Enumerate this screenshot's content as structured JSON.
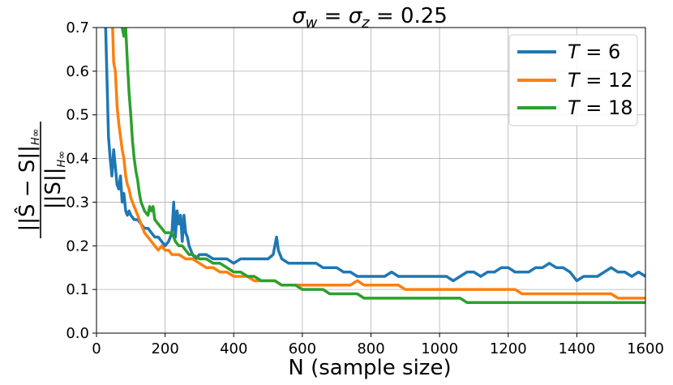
{
  "chart_data": {
    "type": "line",
    "title": "σw = σz = 0.25",
    "title_parts": {
      "sym1": "σ",
      "sub1": "w",
      "eq1": " = ",
      "sym2": "σ",
      "sub2": "z",
      "rest": " = 0.25"
    },
    "xlabel": "N (sample size)",
    "ylabel": "||Ŝ − S||H∞ / ||S||H∞",
    "ylabel_parts": {
      "num": "||Ŝ − S||",
      "den": "||S||",
      "sub": "H∞"
    },
    "xlim": [
      0,
      1600
    ],
    "ylim": [
      0,
      0.7
    ],
    "x_ticks": [
      "0",
      "200",
      "400",
      "600",
      "800",
      "1000",
      "1200",
      "1400",
      "1600"
    ],
    "y_ticks": [
      "0.0",
      "0.1",
      "0.2",
      "0.3",
      "0.4",
      "0.5",
      "0.6",
      "0.7"
    ],
    "grid": true,
    "legend_position": "top-right",
    "series": [
      {
        "name": "T = 6",
        "legend_var": "T",
        "legend_value": " = 6",
        "color": "#1f77b4",
        "points": [
          [
            25,
            0.75
          ],
          [
            30,
            0.6
          ],
          [
            35,
            0.45
          ],
          [
            40,
            0.4
          ],
          [
            45,
            0.36
          ],
          [
            50,
            0.42
          ],
          [
            55,
            0.38
          ],
          [
            60,
            0.34
          ],
          [
            65,
            0.33
          ],
          [
            70,
            0.36
          ],
          [
            75,
            0.3
          ],
          [
            80,
            0.32
          ],
          [
            85,
            0.28
          ],
          [
            90,
            0.27
          ],
          [
            95,
            0.28
          ],
          [
            100,
            0.27
          ],
          [
            110,
            0.26
          ],
          [
            120,
            0.26
          ],
          [
            130,
            0.25
          ],
          [
            140,
            0.24
          ],
          [
            150,
            0.24
          ],
          [
            160,
            0.23
          ],
          [
            170,
            0.22
          ],
          [
            180,
            0.22
          ],
          [
            190,
            0.21
          ],
          [
            200,
            0.2
          ],
          [
            210,
            0.21
          ],
          [
            220,
            0.23
          ],
          [
            225,
            0.3
          ],
          [
            230,
            0.22
          ],
          [
            235,
            0.28
          ],
          [
            240,
            0.25
          ],
          [
            245,
            0.27
          ],
          [
            250,
            0.21
          ],
          [
            255,
            0.27
          ],
          [
            260,
            0.23
          ],
          [
            265,
            0.22
          ],
          [
            270,
            0.2
          ],
          [
            280,
            0.18
          ],
          [
            290,
            0.17
          ],
          [
            300,
            0.18
          ],
          [
            320,
            0.18
          ],
          [
            340,
            0.17
          ],
          [
            360,
            0.17
          ],
          [
            380,
            0.17
          ],
          [
            400,
            0.16
          ],
          [
            420,
            0.17
          ],
          [
            440,
            0.17
          ],
          [
            460,
            0.17
          ],
          [
            480,
            0.17
          ],
          [
            500,
            0.17
          ],
          [
            515,
            0.18
          ],
          [
            525,
            0.22
          ],
          [
            530,
            0.19
          ],
          [
            540,
            0.17
          ],
          [
            560,
            0.16
          ],
          [
            580,
            0.16
          ],
          [
            600,
            0.16
          ],
          [
            620,
            0.16
          ],
          [
            640,
            0.16
          ],
          [
            660,
            0.15
          ],
          [
            680,
            0.15
          ],
          [
            700,
            0.15
          ],
          [
            720,
            0.14
          ],
          [
            740,
            0.14
          ],
          [
            760,
            0.13
          ],
          [
            780,
            0.13
          ],
          [
            800,
            0.13
          ],
          [
            820,
            0.13
          ],
          [
            840,
            0.13
          ],
          [
            860,
            0.14
          ],
          [
            880,
            0.13
          ],
          [
            900,
            0.13
          ],
          [
            920,
            0.13
          ],
          [
            940,
            0.13
          ],
          [
            960,
            0.13
          ],
          [
            980,
            0.13
          ],
          [
            1000,
            0.13
          ],
          [
            1020,
            0.13
          ],
          [
            1040,
            0.12
          ],
          [
            1060,
            0.13
          ],
          [
            1080,
            0.14
          ],
          [
            1100,
            0.14
          ],
          [
            1120,
            0.13
          ],
          [
            1140,
            0.14
          ],
          [
            1160,
            0.14
          ],
          [
            1180,
            0.15
          ],
          [
            1200,
            0.15
          ],
          [
            1220,
            0.14
          ],
          [
            1240,
            0.14
          ],
          [
            1260,
            0.14
          ],
          [
            1280,
            0.15
          ],
          [
            1300,
            0.15
          ],
          [
            1320,
            0.16
          ],
          [
            1340,
            0.15
          ],
          [
            1360,
            0.15
          ],
          [
            1380,
            0.14
          ],
          [
            1400,
            0.12
          ],
          [
            1420,
            0.13
          ],
          [
            1440,
            0.13
          ],
          [
            1460,
            0.13
          ],
          [
            1480,
            0.14
          ],
          [
            1500,
            0.15
          ],
          [
            1520,
            0.14
          ],
          [
            1540,
            0.14
          ],
          [
            1560,
            0.13
          ],
          [
            1580,
            0.14
          ],
          [
            1600,
            0.13
          ]
        ]
      },
      {
        "name": "T = 12",
        "legend_var": "T",
        "legend_value": " = 12",
        "color": "#ff7f0e",
        "points": [
          [
            45,
            0.75
          ],
          [
            50,
            0.62
          ],
          [
            55,
            0.6
          ],
          [
            60,
            0.52
          ],
          [
            65,
            0.48
          ],
          [
            70,
            0.45
          ],
          [
            75,
            0.42
          ],
          [
            80,
            0.4
          ],
          [
            85,
            0.36
          ],
          [
            90,
            0.34
          ],
          [
            95,
            0.33
          ],
          [
            100,
            0.31
          ],
          [
            110,
            0.29
          ],
          [
            120,
            0.27
          ],
          [
            130,
            0.25
          ],
          [
            140,
            0.23
          ],
          [
            150,
            0.22
          ],
          [
            160,
            0.21
          ],
          [
            170,
            0.2
          ],
          [
            180,
            0.19
          ],
          [
            190,
            0.2
          ],
          [
            200,
            0.19
          ],
          [
            210,
            0.19
          ],
          [
            220,
            0.18
          ],
          [
            240,
            0.18
          ],
          [
            260,
            0.17
          ],
          [
            280,
            0.17
          ],
          [
            300,
            0.16
          ],
          [
            320,
            0.15
          ],
          [
            340,
            0.15
          ],
          [
            360,
            0.14
          ],
          [
            380,
            0.14
          ],
          [
            400,
            0.13
          ],
          [
            420,
            0.13
          ],
          [
            440,
            0.13
          ],
          [
            460,
            0.12
          ],
          [
            480,
            0.12
          ],
          [
            500,
            0.12
          ],
          [
            520,
            0.12
          ],
          [
            540,
            0.11
          ],
          [
            560,
            0.11
          ],
          [
            580,
            0.11
          ],
          [
            600,
            0.11
          ],
          [
            620,
            0.11
          ],
          [
            640,
            0.11
          ],
          [
            660,
            0.11
          ],
          [
            680,
            0.11
          ],
          [
            700,
            0.11
          ],
          [
            720,
            0.11
          ],
          [
            740,
            0.11
          ],
          [
            760,
            0.12
          ],
          [
            780,
            0.11
          ],
          [
            800,
            0.11
          ],
          [
            820,
            0.11
          ],
          [
            840,
            0.11
          ],
          [
            860,
            0.11
          ],
          [
            880,
            0.11
          ],
          [
            900,
            0.1
          ],
          [
            920,
            0.1
          ],
          [
            940,
            0.1
          ],
          [
            960,
            0.1
          ],
          [
            980,
            0.1
          ],
          [
            1000,
            0.1
          ],
          [
            1020,
            0.1
          ],
          [
            1040,
            0.1
          ],
          [
            1060,
            0.1
          ],
          [
            1080,
            0.1
          ],
          [
            1100,
            0.1
          ],
          [
            1120,
            0.1
          ],
          [
            1140,
            0.1
          ],
          [
            1160,
            0.1
          ],
          [
            1180,
            0.1
          ],
          [
            1200,
            0.1
          ],
          [
            1220,
            0.1
          ],
          [
            1240,
            0.09
          ],
          [
            1260,
            0.09
          ],
          [
            1280,
            0.09
          ],
          [
            1300,
            0.09
          ],
          [
            1320,
            0.09
          ],
          [
            1340,
            0.09
          ],
          [
            1360,
            0.09
          ],
          [
            1380,
            0.09
          ],
          [
            1400,
            0.09
          ],
          [
            1420,
            0.09
          ],
          [
            1440,
            0.09
          ],
          [
            1460,
            0.09
          ],
          [
            1480,
            0.09
          ],
          [
            1500,
            0.09
          ],
          [
            1520,
            0.08
          ],
          [
            1540,
            0.08
          ],
          [
            1560,
            0.08
          ],
          [
            1580,
            0.08
          ],
          [
            1600,
            0.08
          ]
        ]
      },
      {
        "name": "T = 18",
        "legend_var": "T",
        "legend_value": " = 18",
        "color": "#2ca02c",
        "points": [
          [
            70,
            0.75
          ],
          [
            75,
            0.7
          ],
          [
            80,
            0.68
          ],
          [
            85,
            0.7
          ],
          [
            90,
            0.62
          ],
          [
            95,
            0.55
          ],
          [
            100,
            0.5
          ],
          [
            105,
            0.44
          ],
          [
            110,
            0.4
          ],
          [
            115,
            0.37
          ],
          [
            120,
            0.35
          ],
          [
            125,
            0.32
          ],
          [
            130,
            0.3
          ],
          [
            140,
            0.28
          ],
          [
            150,
            0.27
          ],
          [
            155,
            0.29
          ],
          [
            160,
            0.28
          ],
          [
            165,
            0.29
          ],
          [
            170,
            0.26
          ],
          [
            180,
            0.25
          ],
          [
            190,
            0.24
          ],
          [
            200,
            0.23
          ],
          [
            210,
            0.23
          ],
          [
            220,
            0.23
          ],
          [
            230,
            0.21
          ],
          [
            240,
            0.2
          ],
          [
            250,
            0.2
          ],
          [
            260,
            0.19
          ],
          [
            270,
            0.18
          ],
          [
            280,
            0.18
          ],
          [
            300,
            0.17
          ],
          [
            320,
            0.17
          ],
          [
            340,
            0.16
          ],
          [
            360,
            0.16
          ],
          [
            380,
            0.15
          ],
          [
            400,
            0.14
          ],
          [
            420,
            0.14
          ],
          [
            440,
            0.13
          ],
          [
            460,
            0.13
          ],
          [
            480,
            0.12
          ],
          [
            500,
            0.12
          ],
          [
            520,
            0.12
          ],
          [
            540,
            0.11
          ],
          [
            560,
            0.11
          ],
          [
            580,
            0.11
          ],
          [
            600,
            0.1
          ],
          [
            620,
            0.1
          ],
          [
            640,
            0.1
          ],
          [
            660,
            0.1
          ],
          [
            680,
            0.09
          ],
          [
            700,
            0.09
          ],
          [
            720,
            0.09
          ],
          [
            740,
            0.09
          ],
          [
            760,
            0.09
          ],
          [
            780,
            0.08
          ],
          [
            800,
            0.08
          ],
          [
            820,
            0.08
          ],
          [
            840,
            0.08
          ],
          [
            860,
            0.08
          ],
          [
            880,
            0.08
          ],
          [
            900,
            0.08
          ],
          [
            920,
            0.08
          ],
          [
            940,
            0.08
          ],
          [
            960,
            0.08
          ],
          [
            980,
            0.08
          ],
          [
            1000,
            0.08
          ],
          [
            1020,
            0.08
          ],
          [
            1040,
            0.08
          ],
          [
            1060,
            0.08
          ],
          [
            1080,
            0.07
          ],
          [
            1100,
            0.07
          ],
          [
            1120,
            0.07
          ],
          [
            1140,
            0.07
          ],
          [
            1160,
            0.07
          ],
          [
            1180,
            0.07
          ],
          [
            1200,
            0.07
          ],
          [
            1220,
            0.07
          ],
          [
            1240,
            0.07
          ],
          [
            1260,
            0.07
          ],
          [
            1280,
            0.07
          ],
          [
            1300,
            0.07
          ],
          [
            1320,
            0.07
          ],
          [
            1340,
            0.07
          ],
          [
            1360,
            0.07
          ],
          [
            1380,
            0.07
          ],
          [
            1400,
            0.07
          ],
          [
            1420,
            0.07
          ],
          [
            1440,
            0.07
          ],
          [
            1460,
            0.07
          ],
          [
            1480,
            0.07
          ],
          [
            1500,
            0.07
          ],
          [
            1520,
            0.07
          ],
          [
            1540,
            0.07
          ],
          [
            1560,
            0.07
          ],
          [
            1580,
            0.07
          ],
          [
            1600,
            0.07
          ]
        ]
      }
    ]
  }
}
